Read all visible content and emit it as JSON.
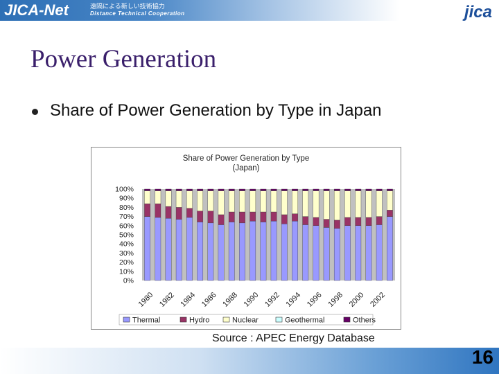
{
  "header": {
    "brand": "JICA-Net",
    "brand_jp": "遠隔による新しい技術協力",
    "brand_en": "Distance Technical Cooperation",
    "logo": "jica"
  },
  "slide": {
    "title": "Power Generation",
    "bullet": "Share of Power Generation by Type in Japan",
    "source": "Source : APEC Energy Database",
    "page_number": "16"
  },
  "chart_data": {
    "type": "bar",
    "stacked": true,
    "title": "Share of Power Generation by Type",
    "subtitle": "(Japan)",
    "categories": [
      "1980",
      "1981",
      "1982",
      "1983",
      "1984",
      "1985",
      "1986",
      "1987",
      "1988",
      "1989",
      "1990",
      "1991",
      "1992",
      "1993",
      "1994",
      "1995",
      "1996",
      "1997",
      "1998",
      "1999",
      "2000",
      "2001",
      "2002",
      "2003"
    ],
    "x_tick_labels": [
      "1980",
      "1982",
      "1984",
      "1986",
      "1988",
      "1990",
      "1992",
      "1994",
      "1996",
      "1998",
      "2000",
      "2002"
    ],
    "y_tick_labels": [
      "0%",
      "10%",
      "20%",
      "30%",
      "40%",
      "50%",
      "60%",
      "70%",
      "80%",
      "90%",
      "100%"
    ],
    "ylim": [
      0,
      100
    ],
    "legend_position": "bottom",
    "series": [
      {
        "name": "Thermal",
        "color": "#9999ff",
        "values": [
          70,
          69,
          68,
          67,
          69,
          64,
          63,
          61,
          64,
          63,
          65,
          64,
          65,
          62,
          65,
          61,
          60,
          58,
          57,
          60,
          60,
          60,
          61,
          70
        ]
      },
      {
        "name": "Hydro",
        "color": "#993366",
        "values": [
          14,
          15,
          13,
          13,
          10,
          12,
          13,
          11,
          11,
          12,
          10,
          11,
          10,
          10,
          8,
          9,
          9,
          9,
          9,
          9,
          9,
          9,
          9,
          7
        ]
      },
      {
        "name": "Nuclear",
        "color": "#ffffcc",
        "values": [
          14,
          14,
          17,
          18,
          19,
          22,
          22,
          26,
          23,
          23,
          23,
          23,
          23,
          26,
          25,
          28,
          29,
          31,
          32,
          29,
          29,
          29,
          28,
          21
        ]
      },
      {
        "name": "Geothermal",
        "color": "#ccffff",
        "values": [
          0.2,
          0.2,
          0.2,
          0.2,
          0.2,
          0.2,
          0.2,
          0.2,
          0.2,
          0.2,
          0.2,
          0.2,
          0.2,
          0.2,
          0.2,
          0.2,
          0.3,
          0.3,
          0.3,
          0.3,
          0.3,
          0.3,
          0.3,
          0.3
        ]
      },
      {
        "name": "Others",
        "color": "#660066",
        "values": [
          1.8,
          1.8,
          1.8,
          1.8,
          1.8,
          1.8,
          1.8,
          1.8,
          1.8,
          1.8,
          1.8,
          1.8,
          1.8,
          1.8,
          1.8,
          1.8,
          1.7,
          1.7,
          1.7,
          1.7,
          1.7,
          1.7,
          1.7,
          1.7
        ]
      }
    ],
    "colors": {
      "plot_background": "#c0c0c0",
      "bar_stroke": "#444444"
    }
  }
}
